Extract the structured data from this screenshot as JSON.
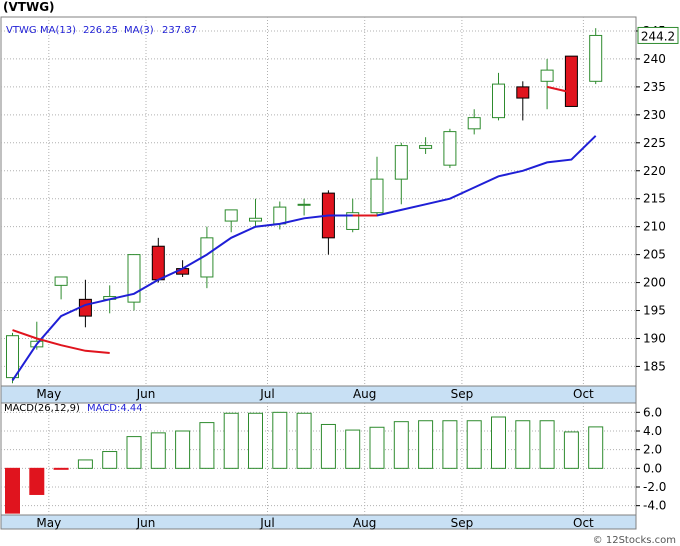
{
  "title": "(VTWG)",
  "footer": "© 12Stocks.com",
  "chart_data": [
    {
      "type": "candlestick",
      "legend": {
        "symbol": "VTWG",
        "ma13_label": "MA(13)",
        "ma13_value": "226.25",
        "ma3_label": "MA(3)",
        "ma3_value": "237.87"
      },
      "last_price_label": "244.2",
      "colors": {
        "up": "#2e8b2e",
        "down": "#e0141e",
        "ma13": "#1f1fd6",
        "ma3": "#e0141e",
        "grid": "#b0b0b0",
        "panel_bg": "#ffffff",
        "axis_bg": "#c8e0f4"
      },
      "y_ticks": [
        185,
        190,
        195,
        200,
        205,
        210,
        215,
        220,
        225,
        230,
        235,
        240,
        245
      ],
      "ylim": [
        181.5,
        247.5
      ],
      "x_labels": [
        {
          "label": "May",
          "bar": 1
        },
        {
          "label": "Jun",
          "bar": 5
        },
        {
          "label": "Jul",
          "bar": 10
        },
        {
          "label": "Aug",
          "bar": 14
        },
        {
          "label": "Sep",
          "bar": 18
        },
        {
          "label": "Oct",
          "bar": 23
        }
      ],
      "candles": [
        {
          "open": 183.0,
          "high": 191.0,
          "low": 182.0,
          "close": 190.5
        },
        {
          "open": 188.5,
          "high": 193.0,
          "low": 188.0,
          "close": 189.5
        },
        {
          "open": 199.5,
          "high": 201.0,
          "low": 197.0,
          "close": 201.0
        },
        {
          "open": 197.0,
          "high": 200.5,
          "low": 192.0,
          "close": 194.0
        },
        {
          "open": 197.0,
          "high": 199.5,
          "low": 194.5,
          "close": 197.5
        },
        {
          "open": 196.5,
          "high": 205.0,
          "low": 195.0,
          "close": 205.0
        },
        {
          "open": 206.5,
          "high": 208.0,
          "low": 200.0,
          "close": 200.5
        },
        {
          "open": 202.5,
          "high": 204.0,
          "low": 201.0,
          "close": 201.5
        },
        {
          "open": 201.0,
          "high": 210.0,
          "low": 199.0,
          "close": 208.0
        },
        {
          "open": 211.0,
          "high": 213.0,
          "low": 209.0,
          "close": 213.0
        },
        {
          "open": 211.0,
          "high": 215.0,
          "low": 210.0,
          "close": 211.5
        },
        {
          "open": 210.5,
          "high": 214.5,
          "low": 209.5,
          "close": 213.5
        },
        {
          "open": 214.0,
          "high": 215.0,
          "low": 212.0,
          "close": 214.0
        },
        {
          "open": 216.0,
          "high": 216.5,
          "low": 205.0,
          "close": 208.0
        },
        {
          "open": 209.5,
          "high": 215.0,
          "low": 209.0,
          "close": 212.5
        },
        {
          "open": 212.5,
          "high": 222.5,
          "low": 212.0,
          "close": 218.5
        },
        {
          "open": 218.5,
          "high": 225.0,
          "low": 214.0,
          "close": 224.5
        },
        {
          "open": 224.0,
          "high": 226.0,
          "low": 223.0,
          "close": 224.5
        },
        {
          "open": 221.0,
          "high": 227.5,
          "low": 220.5,
          "close": 227.0
        },
        {
          "open": 227.5,
          "high": 231.0,
          "low": 226.5,
          "close": 229.5
        },
        {
          "open": 229.5,
          "high": 237.5,
          "low": 229.0,
          "close": 235.5
        },
        {
          "open": 235.0,
          "high": 236.0,
          "low": 229.0,
          "close": 233.0
        },
        {
          "open": 236.0,
          "high": 240.0,
          "low": 231.0,
          "close": 238.0
        },
        {
          "open": 240.5,
          "high": 240.5,
          "low": 231.5,
          "close": 231.5
        },
        {
          "open": 236.0,
          "high": 245.5,
          "low": 235.5,
          "close": 244.2
        }
      ],
      "ma3": [
        191.5,
        190.0,
        188.8,
        187.8,
        187.4,
        null,
        null,
        null,
        null,
        null,
        null,
        null,
        null,
        null,
        212.0,
        212.0,
        null,
        null,
        null,
        null,
        null,
        null,
        235.0,
        234.0,
        237.87
      ],
      "ma3_segments": [
        [
          0,
          4
        ],
        [
          13,
          15
        ],
        [
          21,
          23
        ]
      ],
      "ma13": [
        182.5,
        189.0,
        194.0,
        196.0,
        197.0,
        198.0,
        200.5,
        202.5,
        205.0,
        208.0,
        210.0,
        210.5,
        211.5,
        212.0,
        212.0,
        212.0,
        213.0,
        214.0,
        215.0,
        217.0,
        219.0,
        220.0,
        221.5,
        222.0,
        226.25
      ]
    },
    {
      "type": "bar",
      "legend": {
        "macd_label": "MACD(26,12,9)",
        "macd_value_label": "MACD:4.44"
      },
      "y_ticks": [
        -4.0,
        -2.0,
        0.0,
        2.0,
        4.0,
        6.0
      ],
      "ylim": [
        -5.0,
        7.0
      ],
      "values": [
        -4.8,
        -2.8,
        -0.1,
        0.9,
        1.8,
        3.4,
        3.8,
        4.0,
        4.9,
        5.9,
        5.9,
        6.0,
        5.9,
        4.7,
        4.1,
        4.4,
        5.0,
        5.1,
        5.1,
        5.1,
        5.5,
        5.1,
        5.1,
        3.9,
        4.44
      ]
    }
  ]
}
